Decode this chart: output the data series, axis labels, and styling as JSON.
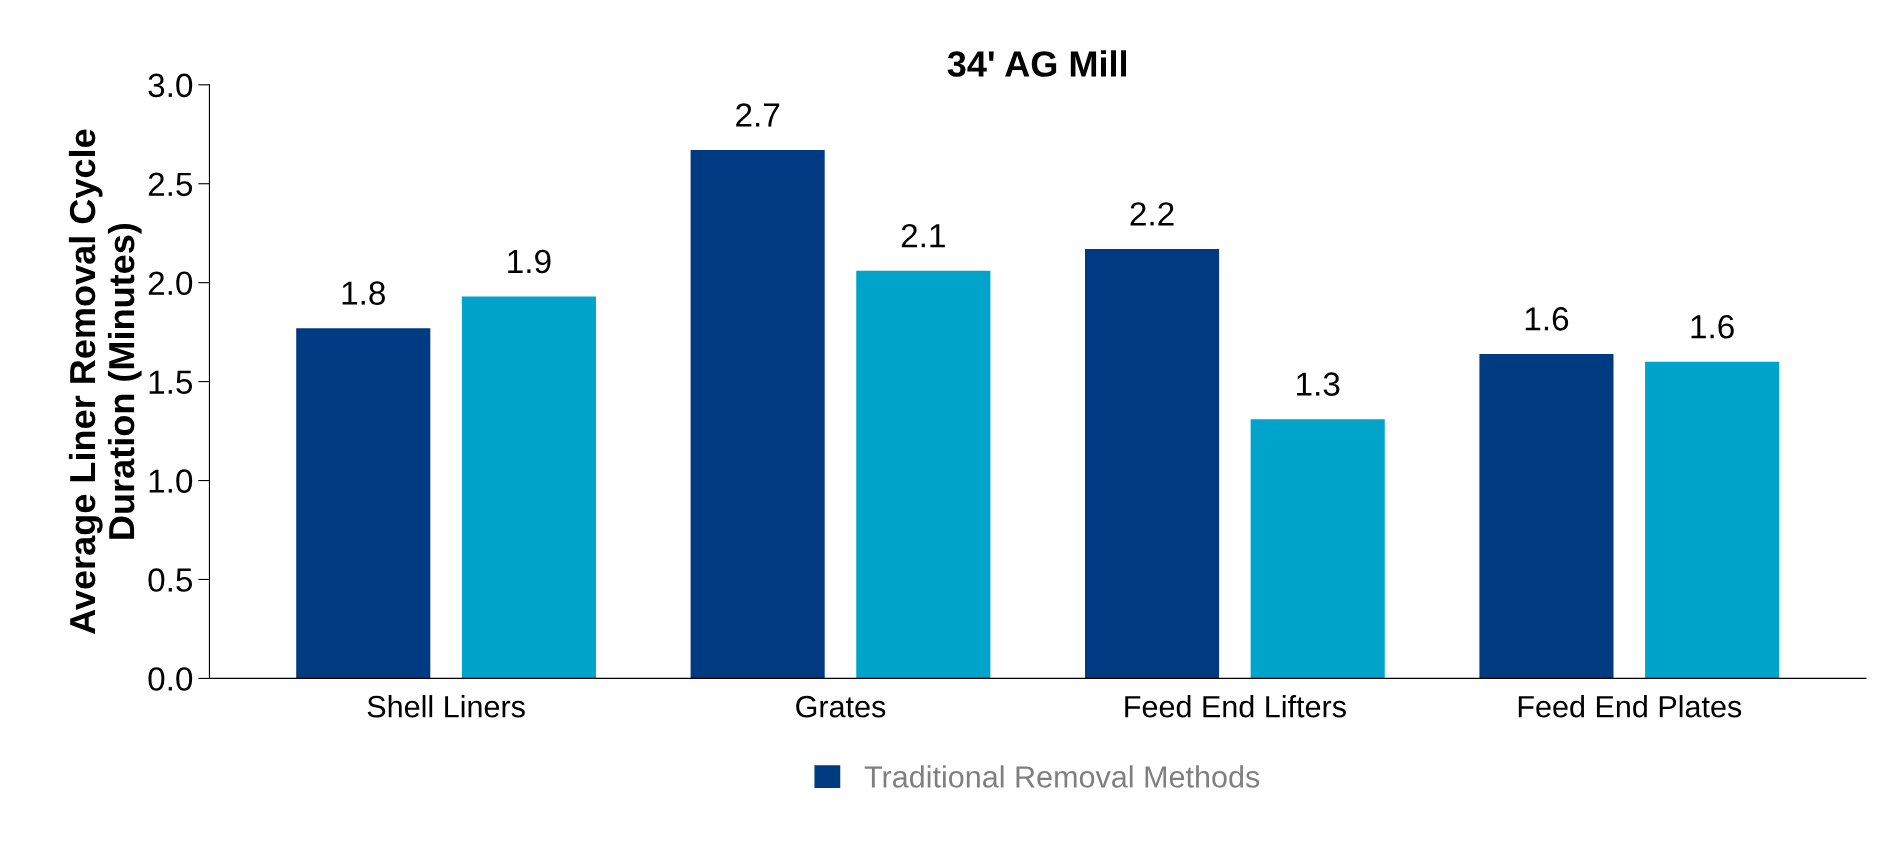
{
  "chart_data": {
    "type": "bar",
    "title": "34' AG Mill",
    "ylabel": "Average Liner Removal Cycle\nDuration (Minutes)",
    "categories": [
      "Shell Liners",
      "Grates",
      "Feed End Lifters",
      "Feed End Plates"
    ],
    "series": [
      {
        "name": "Traditional Removal Methods",
        "color": "#003a80",
        "values": [
          1.77,
          2.67,
          2.17,
          1.64
        ],
        "value_labels": [
          "1.8",
          "2.7",
          "2.2",
          "1.6"
        ]
      },
      {
        "color": "#00a3c9",
        "values": [
          1.93,
          2.06,
          1.31,
          1.6
        ],
        "value_labels": [
          "1.9",
          "2.1",
          "1.3",
          "1.6"
        ]
      }
    ],
    "ylim": [
      0,
      3.0
    ],
    "yticks": [
      {
        "value": 0,
        "label": "0.0"
      },
      {
        "value": 0.5,
        "label": "0.5"
      },
      {
        "value": 1.0,
        "label": "1.0"
      },
      {
        "value": 1.5,
        "label": "1.5"
      },
      {
        "value": 2.0,
        "label": "2.0"
      },
      {
        "value": 2.5,
        "label": "2.5"
      },
      {
        "value": 3.0,
        "label": "3.0"
      }
    ],
    "grid": false,
    "legend": "bottom"
  }
}
